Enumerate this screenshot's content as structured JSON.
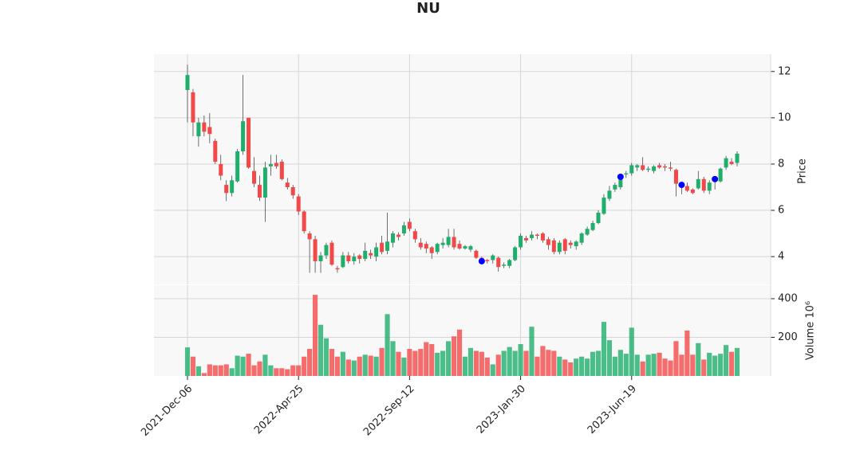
{
  "chart_data": {
    "type": "candlestick",
    "title": "NU",
    "categories": [
      "2021-Dec-06",
      null,
      null,
      null,
      null,
      null,
      null,
      null,
      null,
      null,
      null,
      null,
      null,
      null,
      null,
      null,
      null,
      null,
      null,
      null,
      "2022-Apr-25",
      null,
      null,
      null,
      null,
      null,
      null,
      null,
      null,
      null,
      null,
      null,
      null,
      null,
      null,
      null,
      null,
      null,
      null,
      null,
      "2022-Sep-12",
      null,
      null,
      null,
      null,
      null,
      null,
      null,
      null,
      null,
      null,
      null,
      null,
      null,
      null,
      null,
      null,
      null,
      null,
      null,
      "2023-Jan-30",
      null,
      null,
      null,
      null,
      null,
      null,
      null,
      null,
      null,
      null,
      null,
      null,
      null,
      null,
      null,
      null,
      null,
      null,
      null,
      "2023-Jun-19",
      null,
      null,
      null,
      null,
      null,
      null,
      null,
      null,
      null,
      null,
      null,
      null,
      null,
      null,
      null,
      null,
      null,
      null,
      null
    ],
    "open": [
      11.2,
      11.1,
      9.2,
      9.8,
      9.6,
      9.0,
      8.0,
      7.1,
      6.75,
      7.25,
      8.55,
      10.0,
      7.7,
      7.1,
      6.55,
      7.9,
      8.05,
      8.1,
      7.2,
      7.0,
      6.6,
      5.95,
      5.0,
      4.75,
      3.8,
      4.05,
      4.6,
      3.5,
      3.55,
      4.05,
      3.8,
      4.05,
      3.9,
      4.15,
      4.0,
      4.6,
      4.25,
      4.6,
      4.95,
      5.0,
      5.5,
      5.1,
      4.6,
      4.55,
      4.4,
      4.2,
      4.5,
      4.5,
      4.85,
      4.55,
      4.35,
      4.3,
      4.25,
      3.95,
      3.85,
      3.85,
      3.95,
      3.6,
      3.6,
      3.85,
      4.4,
      4.8,
      4.8,
      4.95,
      5.0,
      4.75,
      4.7,
      4.2,
      4.75,
      4.6,
      4.45,
      4.6,
      4.95,
      5.15,
      5.45,
      5.85,
      6.5,
      6.9,
      7.0,
      7.55,
      7.6,
      7.85,
      7.95,
      7.75,
      7.7,
      7.95,
      7.9,
      7.85,
      7.75,
      7.15,
      7.05,
      6.9,
      6.95,
      7.35,
      6.85,
      7.25,
      7.25,
      7.85,
      8.1,
      8.05
    ],
    "high": [
      12.3,
      11.25,
      10.0,
      10.1,
      10.2,
      9.1,
      8.4,
      7.3,
      7.5,
      8.65,
      11.85,
      10.0,
      8.3,
      7.5,
      8.1,
      8.4,
      8.4,
      8.2,
      7.4,
      7.1,
      6.7,
      6.0,
      5.1,
      4.9,
      4.2,
      4.6,
      4.7,
      3.6,
      4.2,
      4.2,
      4.15,
      4.1,
      4.6,
      4.3,
      4.6,
      4.9,
      5.9,
      5.1,
      5.05,
      5.5,
      5.65,
      5.2,
      4.8,
      4.65,
      4.45,
      4.6,
      4.8,
      5.2,
      5.2,
      4.7,
      4.5,
      4.5,
      4.3,
      4.0,
      3.9,
      4.1,
      4.0,
      3.75,
      3.9,
      4.45,
      5.0,
      4.9,
      5.1,
      5.0,
      5.05,
      4.85,
      4.8,
      4.7,
      4.8,
      4.7,
      4.7,
      5.05,
      5.3,
      5.55,
      6.0,
      6.7,
      7.05,
      7.2,
      7.55,
      7.7,
      8.05,
      8.0,
      8.3,
      7.9,
      7.95,
      8.05,
      8.0,
      8.1,
      7.8,
      7.2,
      7.2,
      6.95,
      7.7,
      7.45,
      7.3,
      7.45,
      7.85,
      8.35,
      8.25,
      8.55
    ],
    "low": [
      9.8,
      9.2,
      8.75,
      9.2,
      8.9,
      8.0,
      7.3,
      6.4,
      6.6,
      7.2,
      8.4,
      7.8,
      7.0,
      6.4,
      5.5,
      7.5,
      7.8,
      7.3,
      6.9,
      6.5,
      5.8,
      5.0,
      3.3,
      3.3,
      3.3,
      3.9,
      3.6,
      3.3,
      3.5,
      3.7,
      3.65,
      3.7,
      3.8,
      3.9,
      3.8,
      4.1,
      4.1,
      4.4,
      4.7,
      4.9,
      5.1,
      4.6,
      4.3,
      4.15,
      3.9,
      4.1,
      4.35,
      4.4,
      4.3,
      4.3,
      4.3,
      4.2,
      3.9,
      3.75,
      3.7,
      3.7,
      3.35,
      3.5,
      3.5,
      3.8,
      4.3,
      4.6,
      4.7,
      4.75,
      4.6,
      4.3,
      4.1,
      4.1,
      4.1,
      4.35,
      4.3,
      4.5,
      4.9,
      5.1,
      5.4,
      5.8,
      6.4,
      6.8,
      6.9,
      7.4,
      7.5,
      7.7,
      7.7,
      7.65,
      7.6,
      7.8,
      7.7,
      7.7,
      6.6,
      6.7,
      6.8,
      6.7,
      6.9,
      6.75,
      6.7,
      6.9,
      7.2,
      7.75,
      7.95,
      7.9
    ],
    "close": [
      11.85,
      9.8,
      9.8,
      9.4,
      9.3,
      8.1,
      7.5,
      6.75,
      7.3,
      8.55,
      9.85,
      7.85,
      7.15,
      6.55,
      7.85,
      8.0,
      7.9,
      7.35,
      7.0,
      6.65,
      5.95,
      5.1,
      4.75,
      3.8,
      4.05,
      4.5,
      3.65,
      3.45,
      4.05,
      3.8,
      4.0,
      3.9,
      4.25,
      4.05,
      4.4,
      4.2,
      4.65,
      5.0,
      4.85,
      5.35,
      5.2,
      4.75,
      4.4,
      4.35,
      4.15,
      4.55,
      4.6,
      4.85,
      4.4,
      4.35,
      4.45,
      4.45,
      3.95,
      3.85,
      3.8,
      4.05,
      3.55,
      3.65,
      3.85,
      4.4,
      4.9,
      4.7,
      4.95,
      4.9,
      4.7,
      4.5,
      4.2,
      4.6,
      4.25,
      4.5,
      4.65,
      5.0,
      5.2,
      5.45,
      5.9,
      6.55,
      6.85,
      7.1,
      7.5,
      7.6,
      7.95,
      7.95,
      7.75,
      7.8,
      7.9,
      7.85,
      7.85,
      7.8,
      7.15,
      7.0,
      6.85,
      6.75,
      7.35,
      6.85,
      7.2,
      7.35,
      7.8,
      8.25,
      8.0,
      8.45
    ],
    "up_color": "#1fae6b",
    "down_color": "#f24848",
    "ylabel": "Price",
    "ylim": [
      2.8,
      12.75
    ],
    "yticks": [
      4,
      6,
      8,
      10,
      12
    ],
    "grid": true,
    "markers": {
      "x": [
        53,
        78,
        89,
        95
      ],
      "values": [
        3.8,
        7.45,
        7.1,
        7.35
      ],
      "color": "#0000ff"
    },
    "volume": {
      "ylabel": "Volume  10⁶",
      "ylim": [
        0,
        470
      ],
      "yticks": [
        200,
        400
      ],
      "values": [
        148,
        100,
        50,
        15,
        60,
        55,
        55,
        60,
        40,
        105,
        100,
        115,
        55,
        75,
        110,
        55,
        40,
        40,
        35,
        55,
        55,
        100,
        140,
        420,
        265,
        195,
        140,
        100,
        125,
        85,
        80,
        100,
        110,
        105,
        100,
        145,
        320,
        180,
        125,
        95,
        140,
        130,
        140,
        175,
        165,
        120,
        130,
        180,
        205,
        240,
        100,
        145,
        130,
        125,
        95,
        60,
        110,
        130,
        150,
        130,
        165,
        130,
        255,
        100,
        155,
        135,
        130,
        100,
        85,
        70,
        90,
        100,
        90,
        125,
        130,
        280,
        185,
        100,
        135,
        115,
        250,
        110,
        75,
        110,
        115,
        120,
        90,
        80,
        180,
        110,
        235,
        110,
        170,
        85,
        120,
        105,
        115,
        160,
        125,
        145
      ]
    }
  }
}
